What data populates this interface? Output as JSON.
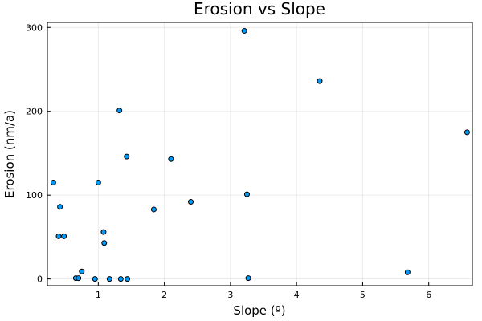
{
  "chart_data": {
    "type": "scatter",
    "title": "Erosion vs Slope",
    "xlabel": "Slope (º)",
    "ylabel": "Erosion (nm/a)",
    "xlim": [
      0.23,
      6.66
    ],
    "ylim": [
      -8,
      306
    ],
    "x_ticks": [
      1,
      2,
      3,
      4,
      5,
      6
    ],
    "y_ticks": [
      0,
      100,
      200,
      300
    ],
    "x_tick_labels": [
      "1",
      "2",
      "3",
      "4",
      "5",
      "6"
    ],
    "y_tick_labels": [
      "0",
      "100",
      "200",
      "300"
    ],
    "grid": true,
    "legend": false,
    "marker_color": "#009AFA",
    "points": [
      {
        "x": 0.32,
        "y": 115
      },
      {
        "x": 0.4,
        "y": 51
      },
      {
        "x": 0.42,
        "y": 86
      },
      {
        "x": 0.48,
        "y": 51
      },
      {
        "x": 0.66,
        "y": 1
      },
      {
        "x": 0.7,
        "y": 1
      },
      {
        "x": 0.75,
        "y": 9
      },
      {
        "x": 0.95,
        "y": 0
      },
      {
        "x": 1.0,
        "y": 115
      },
      {
        "x": 1.08,
        "y": 56
      },
      {
        "x": 1.09,
        "y": 43
      },
      {
        "x": 1.17,
        "y": 0
      },
      {
        "x": 1.32,
        "y": 201
      },
      {
        "x": 1.34,
        "y": 0
      },
      {
        "x": 1.43,
        "y": 146
      },
      {
        "x": 1.44,
        "y": 0
      },
      {
        "x": 1.84,
        "y": 83
      },
      {
        "x": 2.1,
        "y": 143
      },
      {
        "x": 2.4,
        "y": 92
      },
      {
        "x": 3.21,
        "y": 296
      },
      {
        "x": 3.25,
        "y": 101
      },
      {
        "x": 3.27,
        "y": 1
      },
      {
        "x": 4.35,
        "y": 236
      },
      {
        "x": 5.68,
        "y": 8
      },
      {
        "x": 6.58,
        "y": 175
      }
    ]
  }
}
